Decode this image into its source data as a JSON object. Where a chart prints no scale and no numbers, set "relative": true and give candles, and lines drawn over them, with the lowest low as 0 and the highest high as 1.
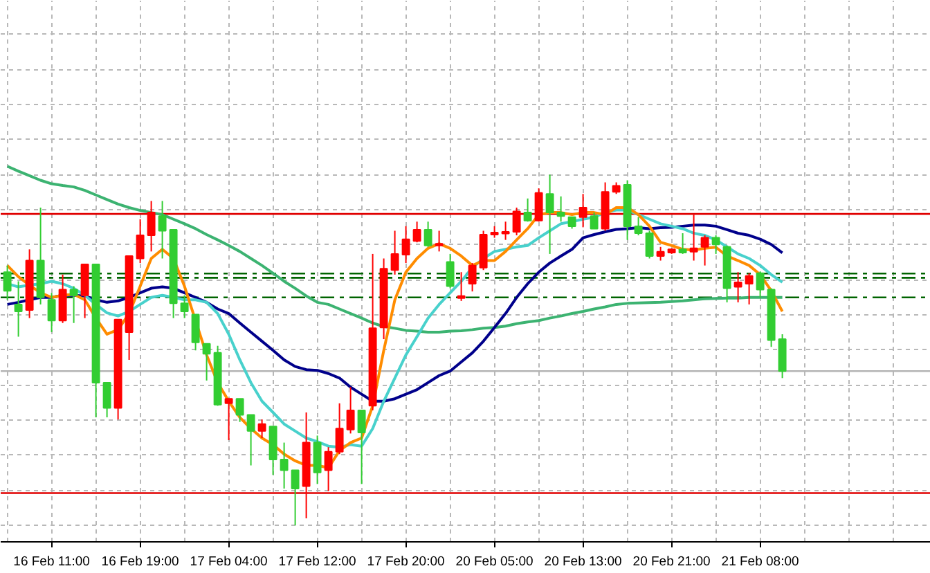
{
  "chart_data": {
    "type": "candlestick",
    "relative": true,
    "grid": true,
    "categories": [
      null,
      null,
      null,
      null,
      "16 Feb 11:00",
      null,
      null,
      null,
      null,
      null,
      null,
      null,
      "16 Feb 19:00",
      null,
      null,
      null,
      null,
      null,
      null,
      null,
      "17 Feb 04:00",
      null,
      null,
      null,
      null,
      null,
      null,
      null,
      "17 Feb 12:00",
      null,
      null,
      null,
      null,
      null,
      null,
      null,
      "17 Feb 20:00",
      null,
      null,
      null,
      null,
      null,
      null,
      null,
      "20 Feb 05:00",
      null,
      null,
      null,
      null,
      null,
      null,
      null,
      "20 Feb 13:00",
      null,
      null,
      null,
      null,
      null,
      null,
      null,
      "20 Feb 21:00",
      null,
      null,
      null,
      null,
      null,
      null,
      null,
      "21 Feb 08:00",
      null,
      null
    ],
    "ohlc": [
      [
        0.722,
        0.741,
        0.643,
        0.669
      ],
      [
        0.63,
        0.696,
        0.538,
        0.61
      ],
      [
        0.614,
        0.787,
        0.591,
        0.755
      ],
      [
        0.755,
        0.906,
        0.63,
        0.65
      ],
      [
        0.643,
        0.663,
        0.551,
        0.584
      ],
      [
        0.584,
        0.715,
        0.577,
        0.672
      ],
      [
        0.672,
        0.682,
        0.577,
        0.656
      ],
      [
        0.656,
        0.744,
        0.591,
        0.744
      ],
      [
        0.744,
        0.744,
        0.308,
        0.407
      ],
      [
        0.407,
        0.407,
        0.308,
        0.335
      ],
      [
        0.335,
        0.587,
        0.302,
        0.587
      ],
      [
        0.551,
        0.768,
        0.472,
        0.768
      ],
      [
        0.761,
        0.873,
        0.748,
        0.827
      ],
      [
        0.827,
        0.925,
        0.781,
        0.892
      ],
      [
        0.882,
        0.925,
        0.761,
        0.84
      ],
      [
        0.843,
        0.843,
        0.591,
        0.633
      ],
      [
        0.633,
        0.656,
        0.591,
        0.61
      ],
      [
        0.601,
        0.601,
        0.499,
        0.522
      ],
      [
        0.518,
        0.518,
        0.413,
        0.489
      ],
      [
        0.492,
        0.512,
        0.341,
        0.344
      ],
      [
        0.348,
        0.361,
        0.243,
        0.361
      ],
      [
        0.361,
        0.361,
        0.295,
        0.315
      ],
      [
        0.315,
        0.315,
        0.171,
        0.269
      ],
      [
        0.269,
        0.302,
        0.249,
        0.289
      ],
      [
        0.282,
        0.282,
        0.144,
        0.188
      ],
      [
        0.188,
        0.236,
        0.105,
        0.157
      ],
      [
        0.157,
        0.157,
        0,
        0.105
      ],
      [
        0.112,
        0.322,
        0.02,
        0.236
      ],
      [
        0.236,
        0.256,
        0.118,
        0.151
      ],
      [
        0.157,
        0.223,
        0.098,
        0.21
      ],
      [
        0.21,
        0.348,
        0.203,
        0.276
      ],
      [
        0.273,
        0.394,
        0.262,
        0.328
      ],
      [
        0.328,
        0.328,
        0.118,
        0.265
      ],
      [
        0.341,
        0.774,
        0.328,
        0.562
      ],
      [
        0.564,
        0.761,
        0.531,
        0.732
      ],
      [
        0.728,
        0.84,
        0.715,
        0.774
      ],
      [
        0.772,
        0.853,
        0.748,
        0.816
      ],
      [
        0.811,
        0.866,
        0.807,
        0.843
      ],
      [
        0.843,
        0.866,
        0.794,
        0.798
      ],
      [
        0.798,
        0.84,
        0.781,
        0.803
      ],
      [
        0.751,
        0.774,
        0.676,
        0.682
      ],
      [
        0.648,
        0.722,
        0.64,
        0.654
      ],
      [
        0.689,
        0.748,
        0.667,
        0.741
      ],
      [
        0.735,
        0.84,
        0.728,
        0.829
      ],
      [
        0.829,
        0.853,
        0.82,
        0.835
      ],
      [
        0.832,
        0.866,
        0.814,
        0.837
      ],
      [
        0.837,
        0.906,
        0.827,
        0.895
      ],
      [
        0.892,
        0.932,
        0.866,
        0.869
      ],
      [
        0.869,
        0.961,
        0.866,
        0.948
      ],
      [
        0.945,
        1,
        0.774,
        0.892
      ],
      [
        0.892,
        0.938,
        0.866,
        0.882
      ],
      [
        0.879,
        0.879,
        0.846,
        0.853
      ],
      [
        0.879,
        0.945,
        0.85,
        0.906
      ],
      [
        0.882,
        0.892,
        0.846,
        0.846
      ],
      [
        0.846,
        0.978,
        0.84,
        0.951
      ],
      [
        0.951,
        0.978,
        0.945,
        0.968
      ],
      [
        0.971,
        0.984,
        0.814,
        0.853
      ],
      [
        0.853,
        0.879,
        0.827,
        0.833
      ],
      [
        0.833,
        0.84,
        0.761,
        0.768
      ],
      [
        0.768,
        0.794,
        0.755,
        0.78
      ],
      [
        0.778,
        0.79,
        0.774,
        0.787
      ],
      [
        0.787,
        0.833,
        0.774,
        0.778
      ],
      [
        0.78,
        0.886,
        0.755,
        0.79
      ],
      [
        0.794,
        0.827,
        0.741,
        0.82
      ],
      [
        0.82,
        0.827,
        0.774,
        0.801
      ],
      [
        0.794,
        0.798,
        0.636,
        0.676
      ],
      [
        0.68,
        0.722,
        0.636,
        0.693
      ],
      [
        0.689,
        0.719,
        0.63,
        0.711
      ],
      [
        0.719,
        0.724,
        0.65,
        0.672
      ],
      [
        0.672,
        0.676,
        0.509,
        0.528
      ],
      [
        0.531,
        0.545,
        0.42,
        0.44
      ]
    ],
    "colors": [
      "#32cd32",
      "#32cd32",
      "#ff0000",
      "#32cd32",
      "#32cd32",
      "#ff0000",
      "#32cd32",
      "#ff0000",
      "#32cd32",
      "#32cd32",
      "#ff0000",
      "#ff0000",
      "#ff0000",
      "#ff0000",
      "#32cd32",
      "#32cd32",
      "#32cd32",
      "#32cd32",
      "#32cd32",
      "#32cd32",
      "#ff0000",
      "#32cd32",
      "#32cd32",
      "#ff0000",
      "#32cd32",
      "#32cd32",
      "#32cd32",
      "#ff0000",
      "#32cd32",
      "#ff0000",
      "#ff0000",
      "#ff0000",
      "#32cd32",
      "#ff0000",
      "#ff0000",
      "#ff0000",
      "#ff0000",
      "#ff0000",
      "#32cd32",
      "#ff0000",
      "#32cd32",
      "#ff0000",
      "#ff0000",
      "#ff0000",
      "#ff0000",
      "#ff0000",
      "#ff0000",
      "#32cd32",
      "#ff0000",
      "#32cd32",
      "#32cd32",
      "#32cd32",
      "#ff0000",
      "#32cd32",
      "#ff0000",
      "#ff0000",
      "#32cd32",
      "#32cd32",
      "#32cd32",
      "#ff0000",
      "#ff0000",
      "#32cd32",
      "#ff0000",
      "#ff0000",
      "#32cd32",
      "#32cd32",
      "#ff0000",
      "#ff0000",
      "#32cd32",
      "#32cd32",
      "#32cd32"
    ],
    "series": [
      {
        "type": "line",
        "color": "#3cb371",
        "values": [
          1.024,
          1.01,
          0.997,
          0.984,
          0.974,
          0.969,
          0.965,
          0.955,
          0.942,
          0.929,
          0.916,
          0.906,
          0.898,
          0.892,
          0.886,
          0.873,
          0.86,
          0.846,
          0.829,
          0.814,
          0.798,
          0.781,
          0.761,
          0.741,
          0.719,
          0.696,
          0.676,
          0.654,
          0.636,
          0.63,
          0.617,
          0.604,
          0.591,
          0.577,
          0.567,
          0.562,
          0.556,
          0.554,
          0.551,
          0.551,
          0.554,
          0.555,
          0.558,
          0.562,
          0.564,
          0.568,
          0.575,
          0.58,
          0.584,
          0.591,
          0.597,
          0.604,
          0.61,
          0.617,
          0.623,
          0.63,
          0.633,
          0.634,
          0.635,
          0.636,
          0.638,
          0.64,
          0.643,
          0.646,
          0.647,
          0.648,
          0.648,
          0.65,
          0.65,
          0.65,
          0.65
        ]
      },
      {
        "type": "line",
        "color": "#00008b",
        "values": [
          0.63,
          0.636,
          0.643,
          0.65,
          0.65,
          0.656,
          0.656,
          0.654,
          0.643,
          0.636,
          0.64,
          0.65,
          0.663,
          0.676,
          0.68,
          0.676,
          0.663,
          0.65,
          0.636,
          0.617,
          0.604,
          0.577,
          0.551,
          0.525,
          0.499,
          0.472,
          0.453,
          0.444,
          0.442,
          0.433,
          0.42,
          0.394,
          0.374,
          0.354,
          0.354,
          0.361,
          0.374,
          0.387,
          0.407,
          0.427,
          0.44,
          0.466,
          0.492,
          0.525,
          0.564,
          0.604,
          0.65,
          0.689,
          0.722,
          0.748,
          0.768,
          0.787,
          0.82,
          0.829,
          0.837,
          0.844,
          0.846,
          0.849,
          0.846,
          0.849,
          0.85,
          0.853,
          0.856,
          0.856,
          0.853,
          0.843,
          0.833,
          0.827,
          0.816,
          0.801,
          0.777
        ]
      },
      {
        "type": "line",
        "color": "#48d1cc",
        "values": [
          0.689,
          0.68,
          0.685,
          0.689,
          0.696,
          0.689,
          0.676,
          0.656,
          0.63,
          0.606,
          0.597,
          0.61,
          0.63,
          0.65,
          0.656,
          0.65,
          0.643,
          0.643,
          0.636,
          0.604,
          0.545,
          0.472,
          0.407,
          0.354,
          0.322,
          0.289,
          0.269,
          0.249,
          0.239,
          0.226,
          0.223,
          0.23,
          0.226,
          0.276,
          0.354,
          0.42,
          0.486,
          0.538,
          0.591,
          0.63,
          0.663,
          0.696,
          0.735,
          0.761,
          0.781,
          0.787,
          0.794,
          0.798,
          0.82,
          0.84,
          0.86,
          0.866,
          0.873,
          0.879,
          0.892,
          0.899,
          0.899,
          0.886,
          0.873,
          0.86,
          0.853,
          0.846,
          0.833,
          0.827,
          0.814,
          0.794,
          0.774,
          0.761,
          0.741,
          0.715,
          0.693
        ]
      },
      {
        "type": "line",
        "color": "#ff8c00",
        "values": [
          0.741,
          0.709,
          0.685,
          0.663,
          0.65,
          0.656,
          0.659,
          0.643,
          0.591,
          0.545,
          0.558,
          0.604,
          0.682,
          0.761,
          0.787,
          0.761,
          0.682,
          null,
          0.486,
          0.407,
          0.354,
          0.308,
          0.276,
          0.249,
          0.23,
          0.203,
          0.184,
          0.171,
          0.171,
          0.164,
          0.213,
          0.236,
          0.249,
          0.341,
          0.499,
          0.643,
          0.722,
          0.761,
          0.79,
          0.803,
          0.79,
          0.768,
          0.741,
          0.755,
          0.755,
          0.781,
          0.814,
          0.846,
          0.886,
          0.892,
          0.892,
          0.886,
          0.892,
          0.892,
          0.886,
          0.906,
          0.906,
          0.886,
          0.853,
          0.807,
          0.798,
          0.787,
          0.785,
          0.79,
          0.793,
          0.768,
          0.755,
          0.741,
          0.715,
          0.669,
          0.61
        ]
      }
    ],
    "ref_lines": [
      {
        "axis": "y",
        "value": 0.888,
        "color": "#e00000",
        "line_style": "solid"
      },
      {
        "axis": "y",
        "value": 0.092,
        "color": "#e00000",
        "line_style": "solid"
      },
      {
        "axis": "y",
        "value": 0.718,
        "color": "#006400",
        "line_style": "dashed"
      },
      {
        "axis": "y",
        "value": 0.706,
        "color": "#006400",
        "line_style": "dashed"
      },
      {
        "axis": "y",
        "value": 0.65,
        "color": "#006400",
        "line_style": "dashed"
      },
      {
        "axis": "y",
        "value": 0.44,
        "color": "#b4b4b4",
        "line_style": "solid"
      }
    ]
  }
}
